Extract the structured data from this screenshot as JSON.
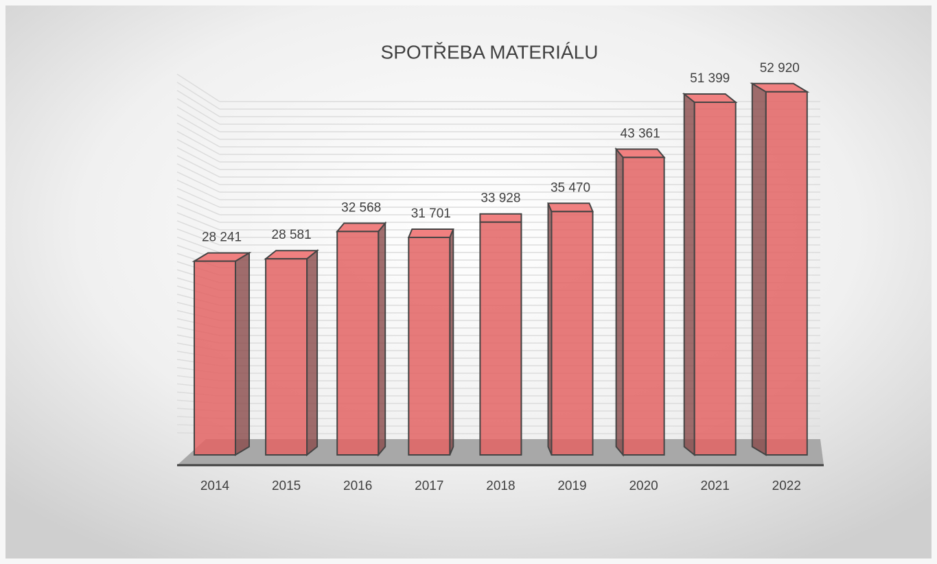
{
  "chart_data": {
    "type": "bar3d",
    "title": "SPOTŘEBA MATERIÁLU",
    "categories": [
      "2014",
      "2015",
      "2016",
      "2017",
      "2018",
      "2019",
      "2020",
      "2021",
      "2022"
    ],
    "values": [
      28241,
      28581,
      32568,
      31701,
      33928,
      35470,
      43361,
      51399,
      52920
    ],
    "value_labels": [
      "28 241",
      "28 581",
      "32 568",
      "31 701",
      "33 928",
      "35 470",
      "43 361",
      "51 399",
      "52 920"
    ],
    "color": "#e36464",
    "ylim": [
      0,
      55000
    ]
  }
}
